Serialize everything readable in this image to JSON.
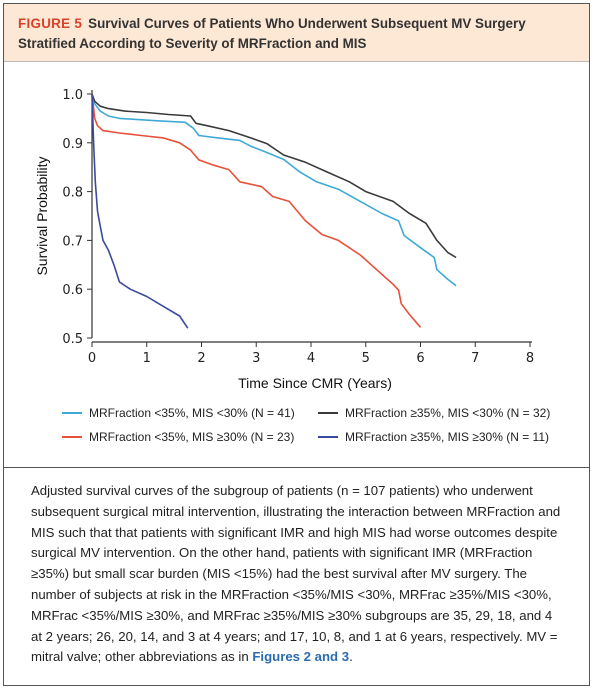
{
  "figure": {
    "label": "FIGURE 5",
    "title": "Survival Curves of Patients Who Underwent Subsequent MV Surgery Stratified According to Severity of MRFraction and MIS"
  },
  "caption": {
    "text": "Adjusted survival curves of the subgroup of patients (n = 107 patients) who underwent subsequent surgical mitral intervention, illustrating the interaction between MRFraction and MIS such that that patients with significant IMR and high MIS had worse outcomes despite surgical MV intervention. On the other hand, patients with significant IMR (MRFraction ≥35%) but small scar burden (MIS <15%) had the best survival after MV surgery. The number of subjects at risk in the MRFraction <35%/MIS <30%, MRFrac ≥35%/MIS <30%, MRFrac <35%/MIS ≥30%, and MRFrac ≥35%/MIS ≥30% subgroups are 35, 29, 18, and 4 at 2 years; 26, 20, 14, and 3 at 4 years; and 17, 10, 8, and 1 at 6 years, respectively. MV = mitral valve; other abbreviations as in ",
    "link": "Figures 2 and 3",
    "end": "."
  },
  "chart_data": {
    "type": "line",
    "xlabel": "Time Since CMR (Years)",
    "ylabel": "Survival Probability",
    "xlim": [
      0,
      8
    ],
    "ylim": [
      0.5,
      1.0
    ],
    "xticks": [
      "0",
      "1",
      "2",
      "3",
      "4",
      "5",
      "6",
      "7",
      "8"
    ],
    "yticks": [
      "0.5",
      "0.6",
      "0.7",
      "0.8",
      "0.9",
      "1.0"
    ],
    "grid": false,
    "legend_position": "bottom",
    "series": [
      {
        "name": "MRFraction <35%, MIS <30% (N = 41)",
        "color": "#3fa9d6",
        "points": [
          [
            0,
            1.0
          ],
          [
            0.05,
            0.98
          ],
          [
            0.15,
            0.965
          ],
          [
            0.3,
            0.955
          ],
          [
            0.5,
            0.95
          ],
          [
            0.8,
            0.948
          ],
          [
            1.2,
            0.945
          ],
          [
            1.7,
            0.942
          ],
          [
            1.85,
            0.93
          ],
          [
            1.95,
            0.915
          ],
          [
            2.3,
            0.91
          ],
          [
            2.7,
            0.905
          ],
          [
            2.9,
            0.893
          ],
          [
            3.2,
            0.88
          ],
          [
            3.5,
            0.866
          ],
          [
            3.8,
            0.84
          ],
          [
            4.1,
            0.82
          ],
          [
            4.5,
            0.805
          ],
          [
            4.9,
            0.78
          ],
          [
            5.3,
            0.755
          ],
          [
            5.6,
            0.74
          ],
          [
            5.7,
            0.71
          ],
          [
            6.0,
            0.685
          ],
          [
            6.25,
            0.665
          ],
          [
            6.3,
            0.64
          ],
          [
            6.5,
            0.62
          ],
          [
            6.65,
            0.607
          ]
        ]
      },
      {
        "name": "MRFraction ≥35%, MIS <30% (N = 32)",
        "color": "#3a3a3a",
        "points": [
          [
            0,
            1.0
          ],
          [
            0.05,
            0.985
          ],
          [
            0.15,
            0.975
          ],
          [
            0.3,
            0.97
          ],
          [
            0.6,
            0.965
          ],
          [
            1.0,
            0.962
          ],
          [
            1.4,
            0.958
          ],
          [
            1.8,
            0.955
          ],
          [
            1.9,
            0.94
          ],
          [
            2.1,
            0.935
          ],
          [
            2.5,
            0.925
          ],
          [
            2.9,
            0.91
          ],
          [
            3.2,
            0.898
          ],
          [
            3.5,
            0.875
          ],
          [
            3.9,
            0.86
          ],
          [
            4.3,
            0.84
          ],
          [
            4.7,
            0.82
          ],
          [
            5.0,
            0.8
          ],
          [
            5.5,
            0.78
          ],
          [
            5.8,
            0.755
          ],
          [
            6.1,
            0.735
          ],
          [
            6.3,
            0.7
          ],
          [
            6.5,
            0.675
          ],
          [
            6.65,
            0.665
          ]
        ]
      },
      {
        "name": "MRFraction <35%, MIS ≥30% (N = 23)",
        "color": "#e8503a",
        "points": [
          [
            0,
            1.0
          ],
          [
            0.05,
            0.95
          ],
          [
            0.1,
            0.935
          ],
          [
            0.2,
            0.925
          ],
          [
            0.5,
            0.92
          ],
          [
            0.9,
            0.915
          ],
          [
            1.3,
            0.91
          ],
          [
            1.6,
            0.9
          ],
          [
            1.8,
            0.885
          ],
          [
            1.95,
            0.865
          ],
          [
            2.2,
            0.855
          ],
          [
            2.5,
            0.845
          ],
          [
            2.7,
            0.82
          ],
          [
            3.1,
            0.81
          ],
          [
            3.3,
            0.79
          ],
          [
            3.6,
            0.78
          ],
          [
            3.9,
            0.74
          ],
          [
            4.2,
            0.712
          ],
          [
            4.5,
            0.7
          ],
          [
            4.9,
            0.67
          ],
          [
            5.2,
            0.64
          ],
          [
            5.5,
            0.61
          ],
          [
            5.6,
            0.598
          ],
          [
            5.65,
            0.57
          ],
          [
            5.8,
            0.548
          ],
          [
            6.0,
            0.522
          ]
        ]
      },
      {
        "name": "MRFraction ≥35%, MIS ≥30% (N = 11)",
        "color": "#3b4a9c",
        "points": [
          [
            0,
            1.0
          ],
          [
            0.03,
            0.9
          ],
          [
            0.06,
            0.82
          ],
          [
            0.1,
            0.76
          ],
          [
            0.15,
            0.73
          ],
          [
            0.2,
            0.7
          ],
          [
            0.3,
            0.68
          ],
          [
            0.4,
            0.65
          ],
          [
            0.5,
            0.615
          ],
          [
            0.7,
            0.6
          ],
          [
            1.0,
            0.585
          ],
          [
            1.3,
            0.565
          ],
          [
            1.6,
            0.545
          ],
          [
            1.75,
            0.52
          ]
        ]
      }
    ]
  }
}
